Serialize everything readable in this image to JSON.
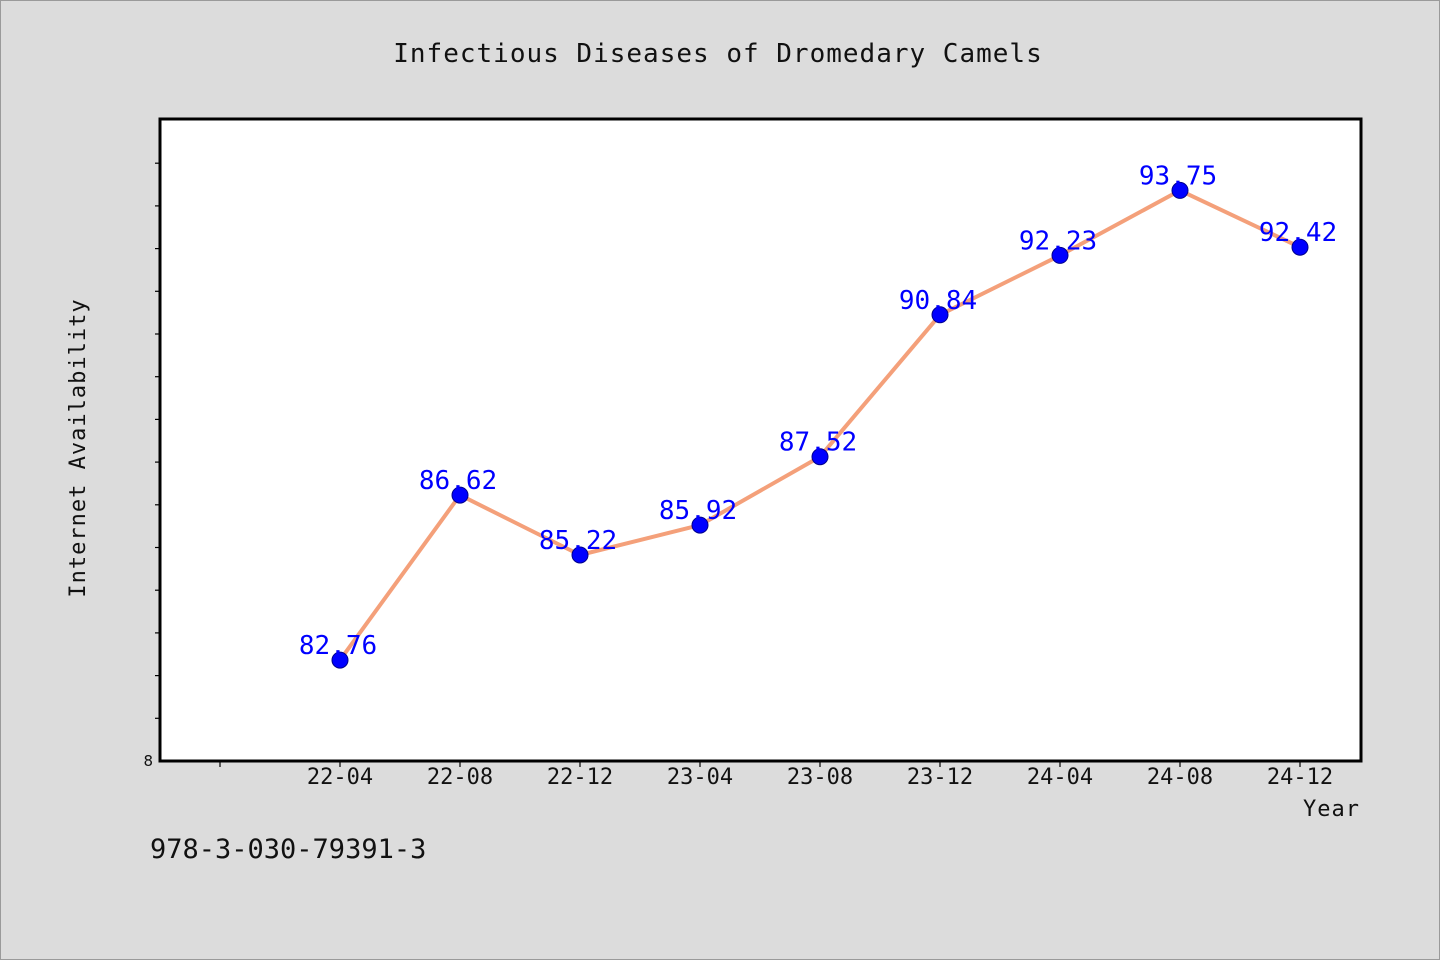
{
  "chart_data": {
    "type": "line",
    "title": "Infectious Diseases of Dromedary Camels",
    "xlabel": "Year",
    "ylabel": "Internet Availability",
    "categories": [
      "22-04",
      "22-08",
      "22-12",
      "23-04",
      "23-08",
      "23-12",
      "24-04",
      "24-08",
      "24-12"
    ],
    "series": [
      {
        "values": [
          82.76,
          86.62,
          85.22,
          85.92,
          87.52,
          90.84,
          92.23,
          93.75,
          92.42
        ],
        "line_color": "#f4a07a",
        "marker_color": "#0000ff"
      }
    ],
    "data_labels": [
      "82.76",
      "86.62",
      "85.22",
      "85.92",
      "87.52",
      "90.84",
      "92.23",
      "93.75",
      "92.42"
    ],
    "y_tick_labels": [
      "8"
    ],
    "ylim": [
      80.4,
      95.42
    ],
    "grid": false,
    "legend": "none",
    "label_color": "#0000ff"
  },
  "footnote": "978-3-030-79391-3"
}
